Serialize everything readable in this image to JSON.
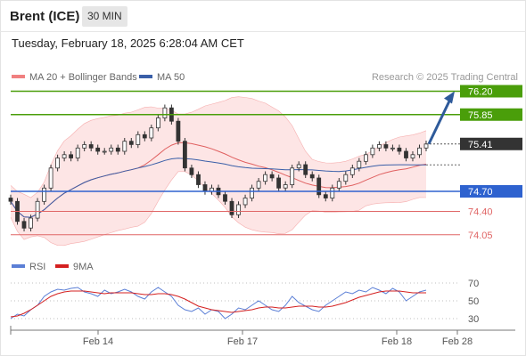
{
  "header": {
    "title": "Brent (ICE)",
    "interval": "30 MIN"
  },
  "timestamp": "Tuesday, February 18, 2025 6:28:04 AM CET",
  "legend": {
    "ma20": "MA 20 + Bollinger Bands",
    "ma50": "MA 50",
    "credit": "Research © 2025 Trading Central",
    "rsi": "RSI",
    "rsi_ma": "9MA"
  },
  "colors": {
    "bollinger": "#f08080",
    "bollinger_fill": "#fde0e0",
    "ma20": "#e06060",
    "ma50": "#3a5fa8",
    "candle": "#333333",
    "target": "#4a9e0a",
    "pivot": "#2e62cf",
    "support": "#e06666",
    "last": "#333333",
    "rsi": "#5b7fd6",
    "rsi_ma": "#d42020"
  },
  "chart_data": [
    {
      "type": "candlestick",
      "x_labels": [
        "Feb 14",
        "Feb 17",
        "Feb 18",
        "Feb 28"
      ],
      "levels": [
        {
          "value": "76.20",
          "kind": "target"
        },
        {
          "value": "75.85",
          "kind": "target"
        },
        {
          "value": "75.41",
          "kind": "last"
        },
        {
          "value": "74.70",
          "kind": "pivot"
        },
        {
          "value": "74.40",
          "kind": "support"
        },
        {
          "value": "74.05",
          "kind": "support"
        }
      ],
      "ylim": [
        73.9,
        76.3
      ],
      "close": [
        74.55,
        74.25,
        74.15,
        74.3,
        74.55,
        74.75,
        75.05,
        75.2,
        75.25,
        75.2,
        75.35,
        75.4,
        75.35,
        75.3,
        75.3,
        75.35,
        75.3,
        75.45,
        75.4,
        75.55,
        75.5,
        75.65,
        75.8,
        75.95,
        75.75,
        75.45,
        75.05,
        74.95,
        74.8,
        74.7,
        74.75,
        74.65,
        74.55,
        74.35,
        74.5,
        74.6,
        74.75,
        74.85,
        74.95,
        74.9,
        74.75,
        74.8,
        75.05,
        75.1,
        74.95,
        74.9,
        74.65,
        74.6,
        74.75,
        74.85,
        74.95,
        75.05,
        75.15,
        75.25,
        75.35,
        75.4,
        75.35,
        75.35,
        75.3,
        75.2,
        75.25,
        75.35,
        75.41
      ],
      "forecast_end": 76.2
    },
    {
      "type": "line",
      "title": "RSI",
      "y_ticks": [
        "70",
        "50",
        "30"
      ],
      "ylim": [
        20,
        80
      ],
      "rsi": [
        30,
        35,
        33,
        40,
        45,
        55,
        60,
        63,
        62,
        64,
        65,
        60,
        58,
        55,
        62,
        58,
        60,
        63,
        60,
        55,
        52,
        60,
        65,
        60,
        55,
        45,
        40,
        38,
        42,
        35,
        40,
        38,
        30,
        35,
        42,
        40,
        45,
        50,
        45,
        40,
        38,
        45,
        55,
        48,
        44,
        40,
        38,
        45,
        50,
        55,
        60,
        58,
        62,
        60,
        65,
        62,
        58,
        64,
        60,
        50,
        55,
        60,
        62
      ],
      "rsi_ma": [
        32,
        33,
        36,
        40,
        45,
        50,
        55,
        58,
        60,
        61,
        61,
        61,
        60,
        59,
        58,
        59,
        59,
        59,
        59,
        58,
        57,
        57,
        58,
        58,
        57,
        55,
        52,
        48,
        44,
        42,
        40,
        39,
        38,
        37,
        38,
        39,
        40,
        42,
        43,
        43,
        42,
        42,
        43,
        44,
        44,
        44,
        43,
        43,
        44,
        46,
        48,
        51,
        54,
        56,
        58,
        60,
        61,
        61,
        61,
        60,
        59,
        59,
        59
      ]
    }
  ]
}
